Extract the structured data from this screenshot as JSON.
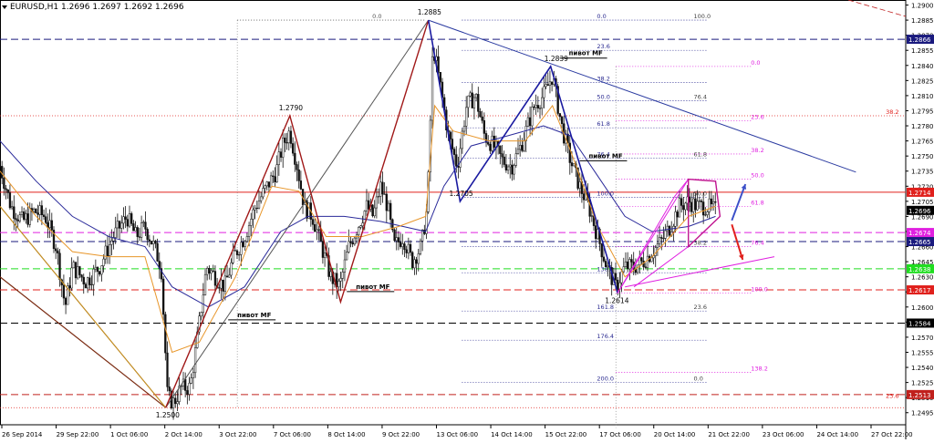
{
  "header": {
    "symbol_tf": "EURUSD,H1",
    "ohlc": "1.2696 1.2697 1.2692 1.2696"
  },
  "chart_data": {
    "type": "candlestick",
    "symbol": "EURUSD",
    "timeframe": "H1",
    "ylim": [
      1.2483,
      1.2905
    ],
    "y_ticks": [
      "1.2900",
      "1.2885",
      "1.2870",
      "1.2855",
      "1.2840",
      "1.2825",
      "1.2810",
      "1.2795",
      "1.2780",
      "1.2765",
      "1.2750",
      "1.2735",
      "1.2720",
      "1.2705",
      "1.2690",
      "1.2675",
      "1.2660",
      "1.2645",
      "1.2630",
      "1.2615",
      "1.2600",
      "1.2585",
      "1.2570",
      "1.2555",
      "1.2540",
      "1.2525",
      "1.2510",
      "1.2495"
    ],
    "x_labels": [
      "26 Sep 2014",
      "29 Sep 22:00",
      "1 Oct 06:00",
      "2 Oct 14:00",
      "3 Oct 22:00",
      "7 Oct 06:00",
      "8 Oct 14:00",
      "9 Oct 22:00",
      "13 Oct 06:00",
      "14 Oct 14:00",
      "15 Oct 22:00",
      "17 Oct 06:00",
      "20 Oct 14:00",
      "21 Oct 22:00",
      "23 Oct 06:00",
      "24 Oct 14:00",
      "27 Oct 22:00"
    ],
    "x_range": [
      0,
      1000
    ],
    "close_path": [
      [
        0,
        1.274
      ],
      [
        12,
        1.27
      ],
      [
        25,
        1.2685
      ],
      [
        38,
        1.2695
      ],
      [
        50,
        1.269
      ],
      [
        62,
        1.266
      ],
      [
        72,
        1.26
      ],
      [
        80,
        1.264
      ],
      [
        95,
        1.2625
      ],
      [
        110,
        1.264
      ],
      [
        125,
        1.267
      ],
      [
        140,
        1.269
      ],
      [
        150,
        1.267
      ],
      [
        160,
        1.268
      ],
      [
        170,
        1.266
      ],
      [
        178,
        1.264
      ],
      [
        185,
        1.251
      ],
      [
        192,
        1.2505
      ],
      [
        200,
        1.252
      ],
      [
        210,
        1.252
      ],
      [
        218,
        1.257
      ],
      [
        228,
        1.264
      ],
      [
        238,
        1.263
      ],
      [
        248,
        1.262
      ],
      [
        258,
        1.265
      ],
      [
        270,
        1.267
      ],
      [
        282,
        1.27
      ],
      [
        295,
        1.272
      ],
      [
        305,
        1.2735
      ],
      [
        312,
        1.276
      ],
      [
        320,
        1.2775
      ],
      [
        328,
        1.274
      ],
      [
        336,
        1.27
      ],
      [
        345,
        1.269
      ],
      [
        355,
        1.266
      ],
      [
        365,
        1.263
      ],
      [
        375,
        1.262
      ],
      [
        385,
        1.266
      ],
      [
        395,
        1.268
      ],
      [
        405,
        1.27
      ],
      [
        412,
        1.269
      ],
      [
        420,
        1.272
      ],
      [
        428,
        1.27
      ],
      [
        435,
        1.266
      ],
      [
        445,
        1.267
      ],
      [
        455,
        1.2645
      ],
      [
        465,
        1.266
      ],
      [
        472,
        1.27
      ],
      [
        478,
        1.286
      ],
      [
        486,
        1.282
      ],
      [
        495,
        1.277
      ],
      [
        505,
        1.274
      ],
      [
        515,
        1.28
      ],
      [
        525,
        1.281
      ],
      [
        535,
        1.277
      ],
      [
        545,
        1.276
      ],
      [
        555,
        1.2745
      ],
      [
        565,
        1.274
      ],
      [
        575,
        1.276
      ],
      [
        590,
        1.28
      ],
      [
        600,
        1.281
      ],
      [
        610,
        1.283
      ],
      [
        620,
        1.278
      ],
      [
        630,
        1.2745
      ],
      [
        640,
        1.272
      ],
      [
        650,
        1.27
      ],
      [
        660,
        1.267
      ],
      [
        670,
        1.264
      ],
      [
        680,
        1.262
      ],
      [
        690,
        1.264
      ],
      [
        700,
        1.264
      ],
      [
        710,
        1.2645
      ],
      [
        720,
        1.2655
      ],
      [
        730,
        1.2665
      ],
      [
        740,
        1.268
      ],
      [
        750,
        1.27
      ],
      [
        760,
        1.2705
      ],
      [
        770,
        1.27
      ],
      [
        780,
        1.27
      ],
      [
        790,
        1.2696
      ]
    ],
    "fast_ma": [
      [
        0,
        1.2735
      ],
      [
        40,
        1.269
      ],
      [
        80,
        1.2655
      ],
      [
        120,
        1.265
      ],
      [
        160,
        1.265
      ],
      [
        190,
        1.2555
      ],
      [
        220,
        1.2565
      ],
      [
        260,
        1.263
      ],
      [
        300,
        1.272
      ],
      [
        330,
        1.2715
      ],
      [
        360,
        1.267
      ],
      [
        400,
        1.267
      ],
      [
        440,
        1.268
      ],
      [
        470,
        1.269
      ],
      [
        480,
        1.28
      ],
      [
        500,
        1.2775
      ],
      [
        540,
        1.2765
      ],
      [
        580,
        1.2765
      ],
      [
        610,
        1.28
      ],
      [
        630,
        1.2755
      ],
      [
        660,
        1.268
      ],
      [
        690,
        1.263
      ],
      [
        720,
        1.265
      ],
      [
        760,
        1.269
      ],
      [
        790,
        1.27
      ]
    ],
    "slow_ma": [
      [
        0,
        1.2765
      ],
      [
        40,
        1.2725
      ],
      [
        80,
        1.269
      ],
      [
        120,
        1.267
      ],
      [
        160,
        1.266
      ],
      [
        190,
        1.262
      ],
      [
        230,
        1.26
      ],
      [
        270,
        1.262
      ],
      [
        310,
        1.2675
      ],
      [
        340,
        1.269
      ],
      [
        380,
        1.269
      ],
      [
        420,
        1.2685
      ],
      [
        470,
        1.2675
      ],
      [
        490,
        1.272
      ],
      [
        520,
        1.276
      ],
      [
        560,
        1.277
      ],
      [
        600,
        1.278
      ],
      [
        630,
        1.277
      ],
      [
        660,
        1.273
      ],
      [
        690,
        1.269
      ],
      [
        720,
        1.2675
      ],
      [
        760,
        1.268
      ],
      [
        790,
        1.269
      ]
    ],
    "swing_labels": [
      {
        "x": 473,
        "y": 1.2885,
        "text": "1.2885"
      },
      {
        "x": 320,
        "y": 1.279,
        "text": "1.2790"
      },
      {
        "x": 613,
        "y": 1.2839,
        "text": "1.2839"
      },
      {
        "x": 508,
        "y": 1.2705,
        "text": "1.2705"
      },
      {
        "x": 680,
        "y": 1.2614,
        "text": "1.2614"
      },
      {
        "x": 184,
        "y": 1.25,
        "text": "1.2500"
      }
    ],
    "zigzag_red": [
      [
        183,
        1.25
      ],
      [
        320,
        1.279
      ],
      [
        376,
        1.2605
      ],
      [
        473,
        1.2885
      ]
    ],
    "zigzag_blue": [
      [
        473,
        1.2885
      ],
      [
        508,
        1.2705
      ],
      [
        608,
        1.2839
      ],
      [
        682,
        1.2614
      ]
    ],
    "ab_gray": [
      [
        183,
        1.25
      ],
      [
        473,
        1.2885
      ]
    ],
    "trendline_blue": [
      [
        473,
        1.2885
      ],
      [
        945,
        1.2734
      ]
    ],
    "channel_brown": [
      [
        0,
        1.263
      ],
      [
        183,
        1.25
      ]
    ],
    "channel_orange": [
      [
        0,
        1.27
      ],
      [
        183,
        1.25
      ]
    ],
    "pink_wedge": [
      [
        682,
        1.2614
      ],
      [
        745,
        1.271
      ],
      [
        760,
        1.2727
      ],
      [
        790,
        1.2725
      ],
      [
        795,
        1.269
      ],
      [
        760,
        1.266
      ],
      [
        700,
        1.262
      ]
    ],
    "pink_wedge_upper": [
      [
        682,
        1.2614
      ],
      [
        760,
        1.2727
      ]
    ],
    "pink_wedge_lower": [
      [
        690,
        1.262
      ],
      [
        855,
        1.265
      ]
    ],
    "pink_tri": [
      [
        760,
        1.2727
      ],
      [
        790,
        1.2725
      ],
      [
        795,
        1.269
      ],
      [
        760,
        1.266
      ]
    ],
    "arrows": [
      {
        "color": "#3b4fc8",
        "from": [
          808,
          1.2686
        ],
        "to": [
          823,
          1.2722
        ]
      },
      {
        "color": "#e0201c",
        "from": [
          808,
          1.2682
        ],
        "to": [
          820,
          1.2647
        ]
      }
    ],
    "horizontal_levels": [
      {
        "value": 1.2866,
        "color": "#1a1a7e",
        "style": "dash",
        "label": "1.2866",
        "label_bg": "#1a1a7e"
      },
      {
        "value": 1.2714,
        "color": "#e0201c",
        "style": "solid",
        "label": "1.2714",
        "label_bg": "#e0201c"
      },
      {
        "value": 1.2696,
        "color": "#000000",
        "style": "none",
        "label": "1.2696",
        "label_bg": "#000000"
      },
      {
        "value": 1.2674,
        "color": "#e020e0",
        "style": "dash",
        "label": "1.2674",
        "label_bg": "#e020e0"
      },
      {
        "value": 1.2665,
        "color": "#1a1a7e",
        "style": "dash",
        "label": "1.2665",
        "label_bg": "#1a1a7e"
      },
      {
        "value": 1.2638,
        "color": "#20dd20",
        "style": "dash",
        "label": "1.2638",
        "label_bg": "#20dd20"
      },
      {
        "value": 1.2617,
        "color": "#e0201c",
        "style": "dash",
        "label": "1.2617",
        "label_bg": "#e0201c"
      },
      {
        "value": 1.2584,
        "color": "#000000",
        "style": "dash",
        "label": "1.2584",
        "label_bg": "#000000"
      },
      {
        "value": 1.2513,
        "color": "#c0201c",
        "style": "dash",
        "label": "1.2513",
        "label_bg": "#c0201c"
      }
    ],
    "extra_dotted": [
      {
        "value": 1.279,
        "color": "#e0201c"
      },
      {
        "value": 1.25,
        "color": "#e0201c"
      }
    ],
    "fib_blue": {
      "x1": 510,
      "x2": 780,
      "color": "#2a2a90",
      "levels": [
        {
          "value": 1.2885,
          "label": "0.0",
          "right_label": "100.0"
        },
        {
          "value": 1.2855,
          "label": "23.6"
        },
        {
          "value": 1.2823,
          "label": "38.2"
        },
        {
          "value": 1.2805,
          "label": "50.0",
          "right_label": "76.4"
        },
        {
          "value": 1.2778,
          "label": "61.8"
        },
        {
          "value": 1.2748,
          "label": "76.4",
          "right_label": "61.8"
        },
        {
          "value": 1.2709,
          "label": "100.0",
          "right_label": "50.0"
        },
        {
          "value": 1.266,
          "label": "",
          "right_label": "38.2"
        },
        {
          "value": 1.2634,
          "label": "138.2"
        },
        {
          "value": 1.2596,
          "label": "161.8",
          "right_label": "23.6"
        },
        {
          "value": 1.2567,
          "label": "176.4"
        },
        {
          "value": 1.2525,
          "label": "200.0",
          "right_label": "0.0"
        }
      ]
    },
    "fib_pink": {
      "x1": 680,
      "x2": 830,
      "color": "#e020e0",
      "levels": [
        {
          "value": 1.2839,
          "label": "0.0"
        },
        {
          "value": 1.2785,
          "label": "23.6"
        },
        {
          "value": 1.2752,
          "label": "38.2"
        },
        {
          "value": 1.2727,
          "label": "50.0"
        },
        {
          "value": 1.27,
          "label": "61.8"
        },
        {
          "value": 1.266,
          "label": "76.4"
        },
        {
          "value": 1.2614,
          "label": "100.0"
        },
        {
          "value": 1.2535,
          "label": "138.2"
        }
      ]
    },
    "fib_red_small": {
      "x1": 930,
      "x2": 990,
      "color": "#e0201c",
      "levels": [
        {
          "value": 1.279,
          "label": "38.2"
        },
        {
          "value": 1.2508,
          "label": "23.6"
        }
      ]
    },
    "fib_left": {
      "x1": 262,
      "x2": 470,
      "color": "#555555",
      "levels": [
        {
          "value": 1.2885,
          "label": "0.0"
        }
      ]
    },
    "pivot_labels": [
      {
        "x": 628,
        "y": 1.285,
        "text": "пивот MF"
      },
      {
        "x": 650,
        "y": 1.2748,
        "text": "пивот MF"
      },
      {
        "x": 393,
        "y": 1.2618,
        "text": "пивот MF"
      },
      {
        "x": 262,
        "y": 1.259,
        "text": "пивот MF"
      }
    ]
  }
}
